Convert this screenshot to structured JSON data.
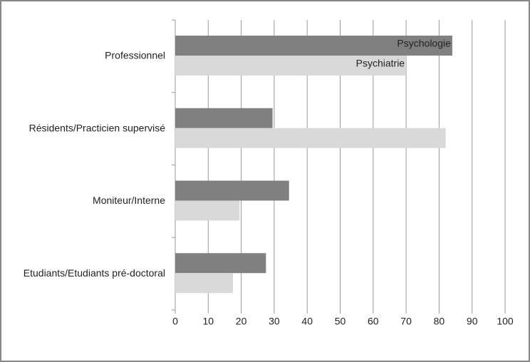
{
  "chart_data": {
    "type": "bar",
    "orientation": "horizontal",
    "categories": [
      "Professionnel",
      "Résidents/Practicien supervisé",
      "Moniteur/Interne",
      "Etudiants/Etudiants pré-doctoral"
    ],
    "series": [
      {
        "name": "Psychologie",
        "color": "#808080",
        "values": [
          84,
          29.5,
          34.5,
          27.5
        ]
      },
      {
        "name": "Psychiatrie",
        "color": "#d9d9d9",
        "values": [
          70,
          82,
          19.5,
          17.5
        ]
      }
    ],
    "xlim": [
      0,
      100
    ],
    "xticks": [
      0,
      10,
      20,
      30,
      40,
      50,
      60,
      70,
      80,
      90,
      100
    ],
    "grid": true
  }
}
